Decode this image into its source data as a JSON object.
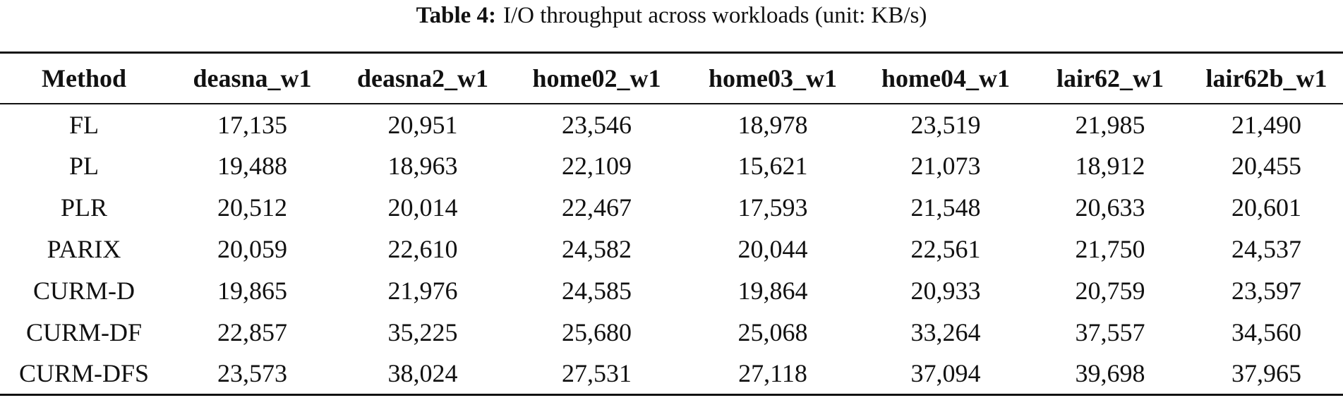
{
  "caption": {
    "label": "Table 4:",
    "text": "I/O throughput across workloads (unit: KB/s)"
  },
  "table": {
    "header": [
      "Method",
      "deasna_w1",
      "deasna2_w1",
      "home02_w1",
      "home03_w1",
      "home04_w1",
      "lair62_w1",
      "lair62b_w1"
    ],
    "rows": [
      [
        "FL",
        "17,135",
        "20,951",
        "23,546",
        "18,978",
        "23,519",
        "21,985",
        "21,490"
      ],
      [
        "PL",
        "19,488",
        "18,963",
        "22,109",
        "15,621",
        "21,073",
        "18,912",
        "20,455"
      ],
      [
        "PLR",
        "20,512",
        "20,014",
        "22,467",
        "17,593",
        "21,548",
        "20,633",
        "20,601"
      ],
      [
        "PARIX",
        "20,059",
        "22,610",
        "24,582",
        "20,044",
        "22,561",
        "21,750",
        "24,537"
      ],
      [
        "CURM-D",
        "19,865",
        "21,976",
        "24,585",
        "19,864",
        "20,933",
        "20,759",
        "23,597"
      ],
      [
        "CURM-DF",
        "22,857",
        "35,225",
        "25,680",
        "25,068",
        "33,264",
        "37,557",
        "34,560"
      ],
      [
        "CURM-DFS",
        "23,573",
        "38,024",
        "27,531",
        "27,118",
        "37,094",
        "39,698",
        "37,965"
      ]
    ]
  }
}
